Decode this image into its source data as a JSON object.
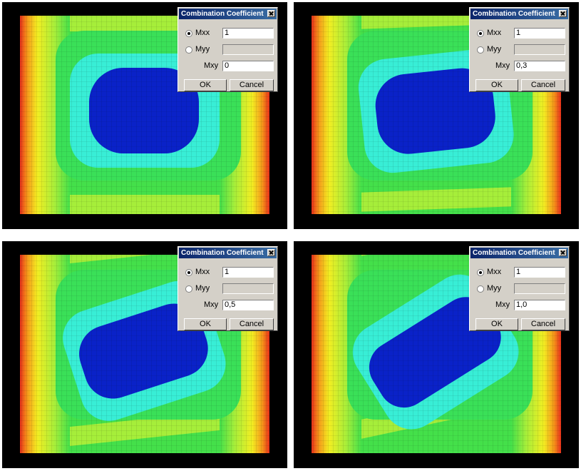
{
  "panels": [
    {
      "dialog": {
        "title": "Combination Coefficient",
        "rows": [
          {
            "label": "Mxx",
            "value": "1"
          },
          {
            "label": "Myy"
          },
          {
            "label": "Mxy",
            "value": "0"
          }
        ],
        "buttons": [
          "OK",
          "Cancel"
        ]
      }
    },
    {
      "dialog": {
        "title": "Combination Coefficient",
        "rows": [
          {
            "label": "Mxx",
            "value": "1"
          },
          {
            "label": "Myy"
          },
          {
            "label": "Mxy",
            "value": "0,3"
          }
        ],
        "buttons": [
          "OK",
          "Cancel"
        ]
      }
    },
    {
      "dialog": {
        "title": "Combination Coefficient",
        "rows": [
          {
            "label": "Mxx",
            "value": "1"
          },
          {
            "label": "Myy"
          },
          {
            "label": "Mxy",
            "value": "0,5"
          }
        ],
        "buttons": [
          "OK",
          "Cancel"
        ]
      }
    },
    {
      "dialog": {
        "title": "Combination Coefficient",
        "rows": [
          {
            "label": "Mxx",
            "value": "1"
          },
          {
            "label": "Myy"
          },
          {
            "label": "Mxy",
            "value": "1,0"
          }
        ],
        "buttons": [
          "OK",
          "Cancel"
        ]
      }
    }
  ]
}
